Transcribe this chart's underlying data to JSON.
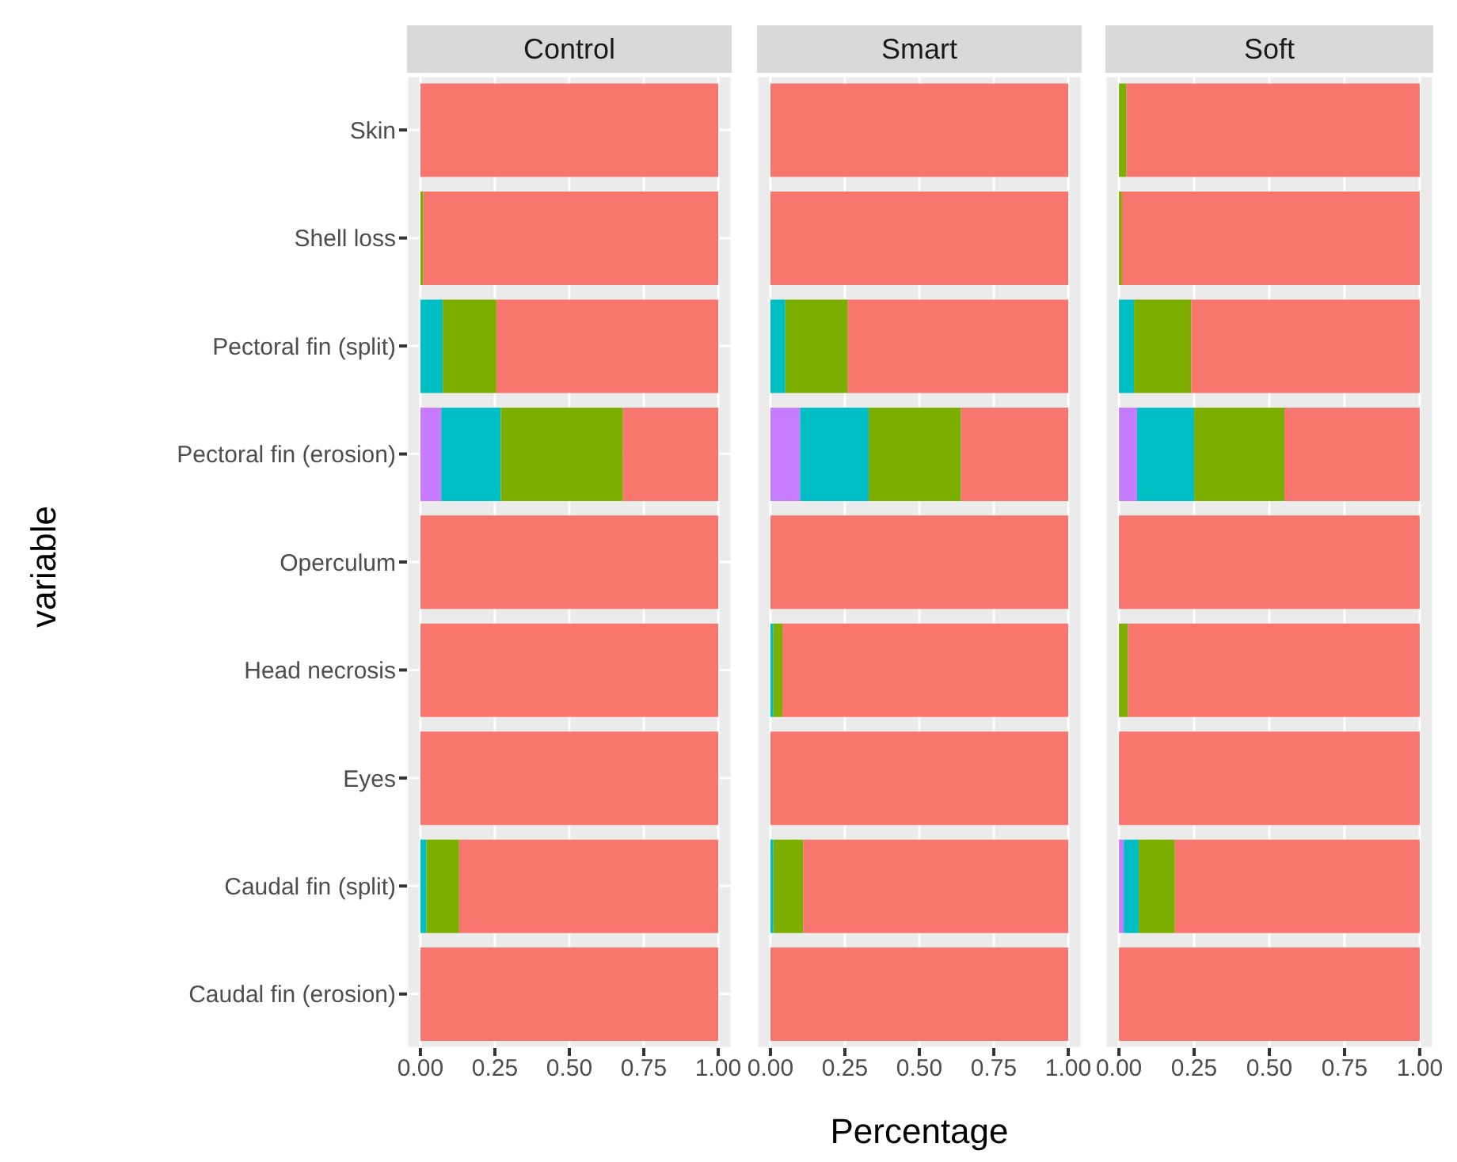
{
  "chart_data": [
    {
      "type": "bar",
      "title": "Control",
      "ylabel": "variable",
      "orientation": "horizontal",
      "stacked": true,
      "grid": true,
      "categories": [
        "Skin",
        "Shell loss",
        "Pectoral fin (split)",
        "Pectoral fin (erosion)",
        "Operculum",
        "Head necrosis",
        "Eyes",
        "Caudal fin (split)",
        "Caudal fin (erosion)"
      ],
      "series": [
        {
          "color": "#c77cff",
          "values": [
            0,
            0,
            0,
            0.07,
            0,
            0,
            0,
            0,
            0
          ]
        },
        {
          "color": "#00bfc4",
          "values": [
            0,
            0,
            0.075,
            0.2,
            0,
            0,
            0,
            0.02,
            0
          ]
        },
        {
          "color": "#7cae00",
          "values": [
            0,
            0.01,
            0.18,
            0.41,
            0,
            0,
            0,
            0.11,
            0
          ]
        },
        {
          "color": "#f8766d",
          "values": [
            1,
            0.99,
            0.745,
            0.32,
            1,
            1,
            1,
            0.87,
            1
          ]
        }
      ],
      "xlim": [
        -0.045,
        1.045
      ],
      "xticks": [
        {
          "value": 0,
          "label": "0.00"
        },
        {
          "value": 0.25,
          "label": "0.25"
        },
        {
          "value": 0.5,
          "label": "0.50"
        },
        {
          "value": 0.75,
          "label": "0.75"
        },
        {
          "value": 1,
          "label": "1.00"
        }
      ]
    },
    {
      "type": "bar",
      "title": "Smart",
      "xlabel": "Percentage",
      "orientation": "horizontal",
      "stacked": true,
      "grid": true,
      "tick_labels": "x",
      "categories": [
        null,
        null,
        null,
        null,
        null,
        null,
        null,
        null,
        null
      ],
      "series": [
        {
          "color": "#c77cff",
          "values": [
            0,
            0,
            0,
            0.1,
            0,
            0,
            0,
            0,
            0
          ]
        },
        {
          "color": "#00bfc4",
          "values": [
            0,
            0,
            0.05,
            0.23,
            0,
            0.01,
            0,
            0.01,
            0
          ]
        },
        {
          "color": "#7cae00",
          "values": [
            0,
            0,
            0.21,
            0.31,
            0,
            0.03,
            0,
            0.1,
            0
          ]
        },
        {
          "color": "#f8766d",
          "values": [
            1,
            1,
            0.74,
            0.36,
            1,
            0.96,
            1,
            0.89,
            1
          ]
        }
      ],
      "xlim": [
        -0.045,
        1.045
      ],
      "xticks": [
        {
          "value": 0,
          "label": "0.00"
        },
        {
          "value": 0.25,
          "label": "0.25"
        },
        {
          "value": 0.5,
          "label": "0.50"
        },
        {
          "value": 0.75,
          "label": "0.75"
        },
        {
          "value": 1,
          "label": "1.00"
        }
      ]
    },
    {
      "type": "bar",
      "title": "Soft",
      "orientation": "horizontal",
      "stacked": true,
      "grid": true,
      "tick_labels": "x",
      "categories": [
        null,
        null,
        null,
        null,
        null,
        null,
        null,
        null,
        null
      ],
      "series": [
        {
          "color": "#c77cff",
          "values": [
            0,
            0,
            0,
            0.06,
            0,
            0,
            0,
            0.016,
            0
          ]
        },
        {
          "color": "#00bfc4",
          "values": [
            0,
            0,
            0.05,
            0.19,
            0,
            0,
            0,
            0.05,
            0
          ]
        },
        {
          "color": "#7cae00",
          "values": [
            0.025,
            0.01,
            0.19,
            0.3,
            0,
            0.03,
            0,
            0.12,
            0
          ]
        },
        {
          "color": "#f8766d",
          "values": [
            0.975,
            0.99,
            0.76,
            0.45,
            1,
            0.97,
            1,
            0.814,
            1
          ]
        }
      ],
      "xlim": [
        -0.045,
        1.045
      ],
      "xticks": [
        {
          "value": 0,
          "label": "0.00"
        },
        {
          "value": 0.25,
          "label": "0.25"
        },
        {
          "value": 0.5,
          "label": "0.50"
        },
        {
          "value": 0.75,
          "label": "0.75"
        },
        {
          "value": 1,
          "label": "1.00"
        }
      ]
    }
  ]
}
